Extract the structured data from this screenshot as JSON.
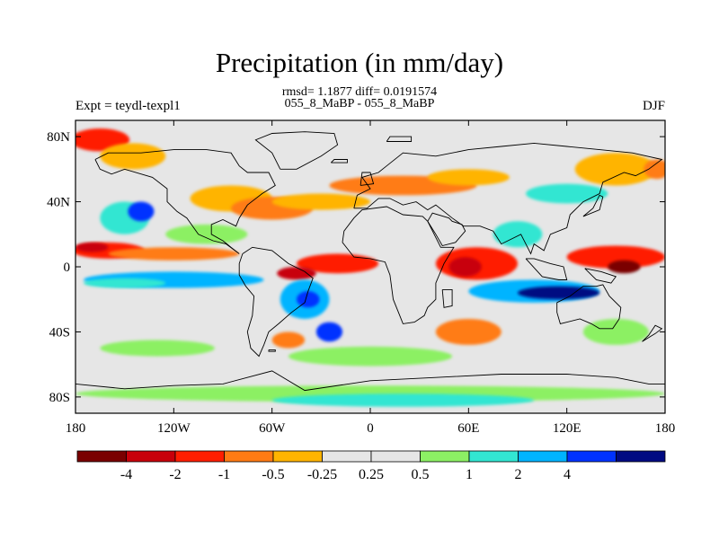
{
  "header": {
    "title": "Precipitation (in mm/day)",
    "rmsd_line": "rmsd= 1.1877 diff= 0.0191574",
    "comparison": "055_8_MaBP - 055_8_MaBP",
    "experiment": "Expt = teydl-texpl1",
    "season": "DJF"
  },
  "map": {
    "projection": "cylindrical-equidistant",
    "lon_range": [
      -180,
      180
    ],
    "lat_range": [
      -90,
      90
    ],
    "y_ticks": [
      {
        "lat": 80,
        "label": "80N"
      },
      {
        "lat": 40,
        "label": "40N"
      },
      {
        "lat": 0,
        "label": "0"
      },
      {
        "lat": -40,
        "label": "40S"
      },
      {
        "lat": -80,
        "label": "80S"
      }
    ],
    "x_ticks": [
      {
        "lon": -180,
        "label": "180"
      },
      {
        "lon": -120,
        "label": "120W"
      },
      {
        "lon": -60,
        "label": "60W"
      },
      {
        "lon": 0,
        "label": "0"
      },
      {
        "lon": 60,
        "label": "60E"
      },
      {
        "lon": 120,
        "label": "120E"
      },
      {
        "lon": 180,
        "label": "180"
      }
    ],
    "background_color": "#e6e6e6"
  },
  "colorbar": {
    "boxes": [
      {
        "color": "#7a0000"
      },
      {
        "color": "#c8000a"
      },
      {
        "color": "#ff1e00"
      },
      {
        "color": "#ff7b14"
      },
      {
        "color": "#ffb400"
      },
      {
        "color": "#e6e6e6"
      },
      {
        "color": "#e6e6e6"
      },
      {
        "color": "#8cf064"
      },
      {
        "color": "#32e6d2"
      },
      {
        "color": "#00b4ff"
      },
      {
        "color": "#0032ff"
      },
      {
        "color": "#000a82"
      }
    ],
    "labels": [
      {
        "after": 1,
        "text": "-4"
      },
      {
        "after": 2,
        "text": "-2"
      },
      {
        "after": 3,
        "text": "-1"
      },
      {
        "after": 4,
        "text": "-0.5"
      },
      {
        "after": 5,
        "text": "-0.25"
      },
      {
        "after": 6,
        "text": "0.25"
      },
      {
        "after": 7,
        "text": "0.5"
      },
      {
        "after": 8,
        "text": "1"
      },
      {
        "after": 9,
        "text": "2"
      },
      {
        "after": 10,
        "text": "4"
      }
    ]
  },
  "fields": [
    {
      "kind": "ellipse",
      "lon": -160,
      "lat": 10,
      "rlon": 22,
      "rlat": 5,
      "level": "#ff1e00"
    },
    {
      "kind": "ellipse",
      "lon": -120,
      "lat": 8,
      "rlon": 40,
      "rlat": 4,
      "level": "#ff7b14"
    },
    {
      "kind": "ellipse",
      "lon": -170,
      "lat": 12,
      "rlon": 10,
      "rlat": 3,
      "level": "#c8000a"
    },
    {
      "kind": "ellipse",
      "lon": -120,
      "lat": -8,
      "rlon": 55,
      "rlat": 5,
      "level": "#00b4ff"
    },
    {
      "kind": "ellipse",
      "lon": -150,
      "lat": -10,
      "rlon": 25,
      "rlat": 3,
      "level": "#32e6d2"
    },
    {
      "kind": "ellipse",
      "lon": -150,
      "lat": 30,
      "rlon": 15,
      "rlat": 10,
      "level": "#32e6d2"
    },
    {
      "kind": "ellipse",
      "lon": -140,
      "lat": 34,
      "rlon": 8,
      "rlat": 6,
      "level": "#0032ff"
    },
    {
      "kind": "ellipse",
      "lon": -165,
      "lat": 78,
      "rlon": 18,
      "rlat": 7,
      "level": "#ff1e00"
    },
    {
      "kind": "ellipse",
      "lon": -145,
      "lat": 68,
      "rlon": 20,
      "rlat": 8,
      "level": "#ffb400"
    },
    {
      "kind": "ellipse",
      "lon": -85,
      "lat": 42,
      "rlon": 25,
      "rlat": 8,
      "level": "#ffb400"
    },
    {
      "kind": "ellipse",
      "lon": -60,
      "lat": 36,
      "rlon": 25,
      "rlat": 7,
      "level": "#ff7b14"
    },
    {
      "kind": "ellipse",
      "lon": -30,
      "lat": 40,
      "rlon": 30,
      "rlat": 5,
      "level": "#ffb400"
    },
    {
      "kind": "ellipse",
      "lon": 20,
      "lat": 50,
      "rlon": 45,
      "rlat": 6,
      "level": "#ff7b14"
    },
    {
      "kind": "ellipse",
      "lon": 60,
      "lat": 55,
      "rlon": 25,
      "rlat": 5,
      "level": "#ffb400"
    },
    {
      "kind": "ellipse",
      "lon": 120,
      "lat": 45,
      "rlon": 25,
      "rlat": 6,
      "level": "#32e6d2"
    },
    {
      "kind": "ellipse",
      "lon": 150,
      "lat": 60,
      "rlon": 25,
      "rlat": 10,
      "level": "#ffb400"
    },
    {
      "kind": "ellipse",
      "lon": 175,
      "lat": 60,
      "rlon": 8,
      "rlat": 6,
      "level": "#ff7b14"
    },
    {
      "kind": "ellipse",
      "lon": -20,
      "lat": 2,
      "rlon": 25,
      "rlat": 6,
      "level": "#ff1e00"
    },
    {
      "kind": "ellipse",
      "lon": -45,
      "lat": -4,
      "rlon": 12,
      "rlat": 4,
      "level": "#c8000a"
    },
    {
      "kind": "ellipse",
      "lon": -40,
      "lat": -20,
      "rlon": 15,
      "rlat": 12,
      "level": "#00b4ff"
    },
    {
      "kind": "ellipse",
      "lon": -38,
      "lat": -20,
      "rlon": 7,
      "rlat": 5,
      "level": "#0032ff"
    },
    {
      "kind": "ellipse",
      "lon": -25,
      "lat": -40,
      "rlon": 8,
      "rlat": 6,
      "level": "#0032ff"
    },
    {
      "kind": "ellipse",
      "lon": -50,
      "lat": -45,
      "rlon": 10,
      "rlat": 5,
      "level": "#ff7b14"
    },
    {
      "kind": "ellipse",
      "lon": 65,
      "lat": 2,
      "rlon": 25,
      "rlat": 10,
      "level": "#ff1e00"
    },
    {
      "kind": "ellipse",
      "lon": 58,
      "lat": 0,
      "rlon": 10,
      "rlat": 6,
      "level": "#c8000a"
    },
    {
      "kind": "ellipse",
      "lon": 100,
      "lat": -15,
      "rlon": 40,
      "rlat": 7,
      "level": "#00b4ff"
    },
    {
      "kind": "ellipse",
      "lon": 115,
      "lat": -16,
      "rlon": 25,
      "rlat": 4,
      "level": "#000a82"
    },
    {
      "kind": "ellipse",
      "lon": 150,
      "lat": 6,
      "rlon": 30,
      "rlat": 7,
      "level": "#ff1e00"
    },
    {
      "kind": "ellipse",
      "lon": 155,
      "lat": 0,
      "rlon": 10,
      "rlat": 4,
      "level": "#7a0000"
    },
    {
      "kind": "ellipse",
      "lon": 60,
      "lat": -40,
      "rlon": 20,
      "rlat": 8,
      "level": "#ff7b14"
    },
    {
      "kind": "ellipse",
      "lon": 0,
      "lat": -55,
      "rlon": 50,
      "rlat": 6,
      "level": "#8cf064"
    },
    {
      "kind": "ellipse",
      "lon": -130,
      "lat": -50,
      "rlon": 35,
      "rlat": 5,
      "level": "#8cf064"
    },
    {
      "kind": "ellipse",
      "lon": 150,
      "lat": -40,
      "rlon": 20,
      "rlat": 8,
      "level": "#8cf064"
    },
    {
      "kind": "ellipse",
      "lon": 0,
      "lat": -78,
      "rlon": 180,
      "rlat": 5,
      "level": "#8cf064"
    },
    {
      "kind": "ellipse",
      "lon": 20,
      "lat": -82,
      "rlon": 80,
      "rlat": 4,
      "level": "#32e6d2"
    },
    {
      "kind": "ellipse",
      "lon": -100,
      "lat": 20,
      "rlon": 25,
      "rlat": 6,
      "level": "#8cf064"
    },
    {
      "kind": "ellipse",
      "lon": 90,
      "lat": 20,
      "rlon": 15,
      "rlat": 8,
      "level": "#32e6d2"
    }
  ],
  "coastlines": [
    {
      "name": "north-america",
      "points": [
        [
          -168,
          66
        ],
        [
          -160,
          70
        ],
        [
          -140,
          70
        ],
        [
          -120,
          72
        ],
        [
          -100,
          72
        ],
        [
          -85,
          70
        ],
        [
          -80,
          62
        ],
        [
          -75,
          58
        ],
        [
          -62,
          58
        ],
        [
          -58,
          50
        ],
        [
          -66,
          45
        ],
        [
          -75,
          38
        ],
        [
          -80,
          30
        ],
        [
          -82,
          25
        ],
        [
          -90,
          29
        ],
        [
          -97,
          26
        ],
        [
          -97,
          20
        ],
        [
          -90,
          16
        ],
        [
          -85,
          12
        ],
        [
          -80,
          8
        ],
        [
          -88,
          14
        ],
        [
          -96,
          16
        ],
        [
          -105,
          20
        ],
        [
          -112,
          30
        ],
        [
          -118,
          34
        ],
        [
          -124,
          40
        ],
        [
          -124,
          48
        ],
        [
          -133,
          55
        ],
        [
          -150,
          60
        ],
        [
          -158,
          57
        ],
        [
          -165,
          60
        ],
        [
          -168,
          66
        ]
      ]
    },
    {
      "name": "greenland",
      "points": [
        [
          -55,
          60
        ],
        [
          -45,
          60
        ],
        [
          -30,
          68
        ],
        [
          -20,
          75
        ],
        [
          -22,
          82
        ],
        [
          -40,
          83
        ],
        [
          -60,
          82
        ],
        [
          -70,
          78
        ],
        [
          -60,
          70
        ],
        [
          -55,
          60
        ]
      ]
    },
    {
      "name": "south-america",
      "points": [
        [
          -78,
          8
        ],
        [
          -72,
          12
        ],
        [
          -60,
          10
        ],
        [
          -50,
          2
        ],
        [
          -40,
          -3
        ],
        [
          -35,
          -7
        ],
        [
          -38,
          -15
        ],
        [
          -40,
          -22
        ],
        [
          -48,
          -28
        ],
        [
          -56,
          -35
        ],
        [
          -62,
          -40
        ],
        [
          -65,
          -48
        ],
        [
          -68,
          -55
        ],
        [
          -73,
          -50
        ],
        [
          -75,
          -40
        ],
        [
          -72,
          -30
        ],
        [
          -71,
          -18
        ],
        [
          -76,
          -12
        ],
        [
          -80,
          -5
        ],
        [
          -80,
          2
        ],
        [
          -78,
          8
        ]
      ]
    },
    {
      "name": "eurasia",
      "points": [
        [
          -10,
          36
        ],
        [
          -8,
          44
        ],
        [
          0,
          48
        ],
        [
          -5,
          55
        ],
        [
          5,
          58
        ],
        [
          10,
          62
        ],
        [
          20,
          70
        ],
        [
          40,
          68
        ],
        [
          60,
          72
        ],
        [
          80,
          74
        ],
        [
          100,
          76
        ],
        [
          120,
          74
        ],
        [
          140,
          72
        ],
        [
          160,
          70
        ],
        [
          178,
          66
        ],
        [
          170,
          60
        ],
        [
          162,
          56
        ],
        [
          155,
          58
        ],
        [
          142,
          52
        ],
        [
          140,
          45
        ],
        [
          130,
          40
        ],
        [
          122,
          32
        ],
        [
          120,
          24
        ],
        [
          110,
          20
        ],
        [
          106,
          10
        ],
        [
          100,
          14
        ],
        [
          98,
          8
        ],
        [
          92,
          20
        ],
        [
          80,
          14
        ],
        [
          75,
          22
        ],
        [
          67,
          25
        ],
        [
          57,
          25
        ],
        [
          50,
          30
        ],
        [
          40,
          38
        ],
        [
          35,
          35
        ],
        [
          28,
          40
        ],
        [
          20,
          38
        ],
        [
          12,
          42
        ],
        [
          5,
          42
        ],
        [
          -2,
          36
        ],
        [
          -10,
          36
        ]
      ]
    },
    {
      "name": "africa",
      "points": [
        [
          -17,
          15
        ],
        [
          -16,
          22
        ],
        [
          -10,
          30
        ],
        [
          -5,
          35
        ],
        [
          10,
          37
        ],
        [
          20,
          32
        ],
        [
          32,
          31
        ],
        [
          35,
          28
        ],
        [
          43,
          12
        ],
        [
          51,
          12
        ],
        [
          45,
          2
        ],
        [
          40,
          -10
        ],
        [
          40,
          -20
        ],
        [
          35,
          -25
        ],
        [
          33,
          -30
        ],
        [
          27,
          -34
        ],
        [
          20,
          -35
        ],
        [
          18,
          -30
        ],
        [
          14,
          -20
        ],
        [
          12,
          -5
        ],
        [
          9,
          3
        ],
        [
          0,
          5
        ],
        [
          -10,
          6
        ],
        [
          -17,
          15
        ]
      ]
    },
    {
      "name": "arabia",
      "points": [
        [
          35,
          28
        ],
        [
          40,
          20
        ],
        [
          44,
          13
        ],
        [
          52,
          15
        ],
        [
          58,
          22
        ],
        [
          56,
          26
        ],
        [
          50,
          28
        ],
        [
          48,
          30
        ],
        [
          38,
          33
        ],
        [
          35,
          28
        ]
      ]
    },
    {
      "name": "madagascar",
      "points": [
        [
          44,
          -14
        ],
        [
          50,
          -14
        ],
        [
          50,
          -24
        ],
        [
          45,
          -25
        ],
        [
          44,
          -14
        ]
      ]
    },
    {
      "name": "australia",
      "points": [
        [
          114,
          -22
        ],
        [
          122,
          -18
        ],
        [
          130,
          -12
        ],
        [
          138,
          -12
        ],
        [
          142,
          -11
        ],
        [
          146,
          -18
        ],
        [
          153,
          -25
        ],
        [
          152,
          -32
        ],
        [
          148,
          -38
        ],
        [
          140,
          -38
        ],
        [
          135,
          -35
        ],
        [
          128,
          -32
        ],
        [
          116,
          -35
        ],
        [
          114,
          -28
        ],
        [
          114,
          -22
        ]
      ]
    },
    {
      "name": "indonesia",
      "points": [
        [
          95,
          5
        ],
        [
          105,
          -6
        ],
        [
          115,
          -8
        ],
        [
          120,
          -8
        ],
        [
          118,
          0
        ],
        [
          110,
          2
        ],
        [
          100,
          5
        ],
        [
          95,
          5
        ]
      ]
    },
    {
      "name": "new-guinea",
      "points": [
        [
          131,
          -1
        ],
        [
          141,
          -3
        ],
        [
          150,
          -6
        ],
        [
          147,
          -10
        ],
        [
          138,
          -8
        ],
        [
          131,
          -1
        ]
      ]
    },
    {
      "name": "uk",
      "points": [
        [
          -6,
          50
        ],
        [
          2,
          51
        ],
        [
          0,
          58
        ],
        [
          -5,
          58
        ],
        [
          -6,
          50
        ]
      ]
    },
    {
      "name": "japan",
      "points": [
        [
          130,
          31
        ],
        [
          140,
          35
        ],
        [
          142,
          43
        ],
        [
          140,
          44
        ],
        [
          136,
          36
        ],
        [
          130,
          31
        ]
      ]
    },
    {
      "name": "new-zealand",
      "points": [
        [
          166,
          -46
        ],
        [
          174,
          -41
        ],
        [
          178,
          -38
        ],
        [
          174,
          -36
        ],
        [
          170,
          -42
        ],
        [
          166,
          -46
        ]
      ]
    },
    {
      "name": "antarctica",
      "points": [
        [
          -180,
          -72
        ],
        [
          -150,
          -75
        ],
        [
          -120,
          -73
        ],
        [
          -90,
          -72
        ],
        [
          -60,
          -64
        ],
        [
          -40,
          -76
        ],
        [
          0,
          -70
        ],
        [
          40,
          -68
        ],
        [
          80,
          -66
        ],
        [
          120,
          -66
        ],
        [
          150,
          -68
        ],
        [
          170,
          -72
        ],
        [
          180,
          -72
        ]
      ]
    },
    {
      "name": "iceland",
      "points": [
        [
          -24,
          64
        ],
        [
          -14,
          64
        ],
        [
          -14,
          66
        ],
        [
          -22,
          66
        ],
        [
          -24,
          64
        ]
      ]
    },
    {
      "name": "falklands",
      "points": [
        [
          -62,
          -51
        ],
        [
          -58,
          -51
        ],
        [
          -58,
          -52
        ],
        [
          -62,
          -52
        ],
        [
          -62,
          -51
        ]
      ]
    },
    {
      "name": "svalbard",
      "points": [
        [
          10,
          77
        ],
        [
          25,
          77
        ],
        [
          25,
          80
        ],
        [
          12,
          80
        ],
        [
          10,
          77
        ]
      ]
    }
  ]
}
